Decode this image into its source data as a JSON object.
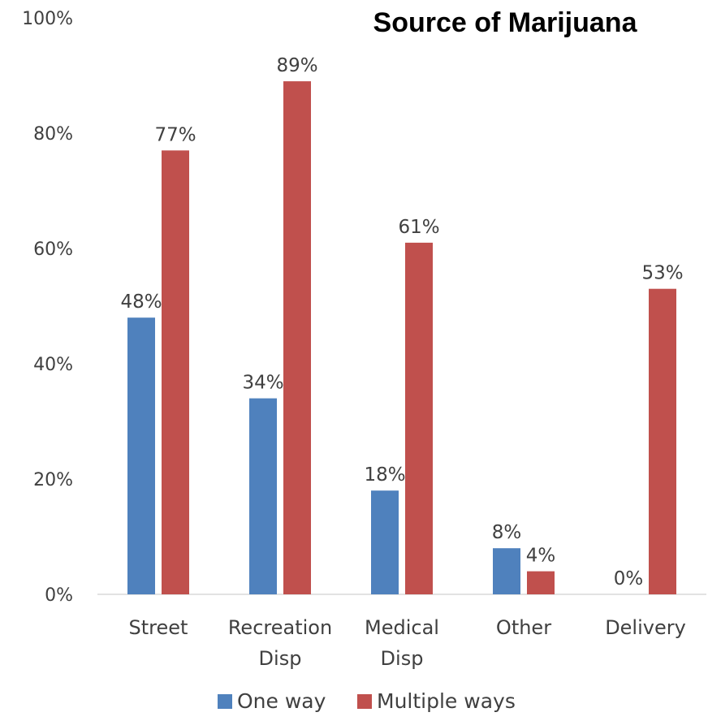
{
  "chart_data": {
    "type": "bar",
    "title": "Source of Marijuana",
    "categories": [
      [
        "Street"
      ],
      [
        "Recreation",
        "Disp"
      ],
      [
        "Medical",
        "Disp"
      ],
      [
        "Other"
      ],
      [
        "Delivery"
      ]
    ],
    "series": [
      {
        "name": "One way",
        "color": "#4f81bd",
        "values": [
          48,
          34,
          18,
          8,
          0
        ],
        "labels": [
          "48%",
          "34%",
          "18%",
          "8%",
          "0%"
        ]
      },
      {
        "name": "Multiple ways",
        "color": "#c0504d",
        "values": [
          77,
          89,
          61,
          4,
          53
        ],
        "labels": [
          "77%",
          "89%",
          "61%",
          "4%",
          "53%"
        ]
      }
    ],
    "yticks": [
      0,
      20,
      40,
      60,
      80,
      100
    ],
    "ytick_labels": [
      "0%",
      "20%",
      "40%",
      "60%",
      "80%",
      "100%"
    ],
    "ylim": [
      0,
      100
    ],
    "grid": false,
    "legend_position": "bottom"
  }
}
